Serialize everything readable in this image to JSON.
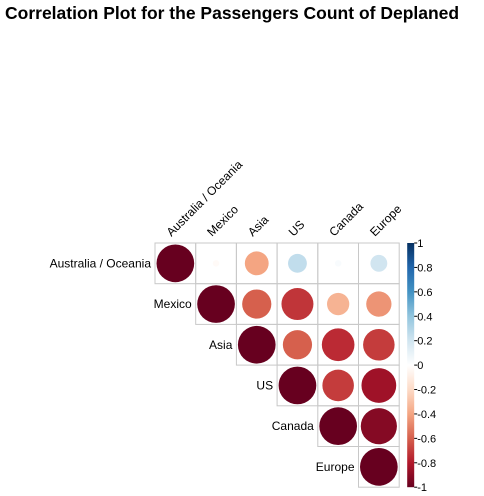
{
  "chart_data": {
    "type": "heatmap",
    "subtype": "correlation-circle-upper",
    "title": "Correlation Plot for the Passengers Count of Deplaned",
    "variables": [
      "Australia / Oceania",
      "Mexico",
      "Asia",
      "US",
      "Canada",
      "Europe"
    ],
    "matrix": [
      [
        1.0,
        0.03,
        0.4,
        -0.25,
        -0.03,
        -0.2
      ],
      [
        0.03,
        1.0,
        0.6,
        0.72,
        0.35,
        0.45
      ],
      [
        0.4,
        0.6,
        1.0,
        0.6,
        0.75,
        0.7
      ],
      [
        -0.25,
        0.72,
        0.6,
        1.0,
        0.7,
        0.85
      ],
      [
        -0.03,
        0.35,
        0.75,
        0.7,
        1.0,
        0.92
      ],
      [
        -0.2,
        0.45,
        0.7,
        0.85,
        0.92,
        1.0
      ]
    ],
    "colorbar": {
      "ticks": [
        "1",
        "0.8",
        "0.6",
        "0.4",
        "0.2",
        "0",
        "-0.2",
        "-0.4",
        "-0.6",
        "-0.8",
        "-1"
      ],
      "range": [
        -1,
        1
      ],
      "colors": [
        "#67001F",
        "#B2182B",
        "#D6604D",
        "#F4A582",
        "#FDDBC7",
        "#FFFFFF",
        "#D1E5F0",
        "#92C5DE",
        "#4393C3",
        "#2166AC",
        "#053061"
      ]
    },
    "grid": true,
    "legend_position": "right"
  }
}
